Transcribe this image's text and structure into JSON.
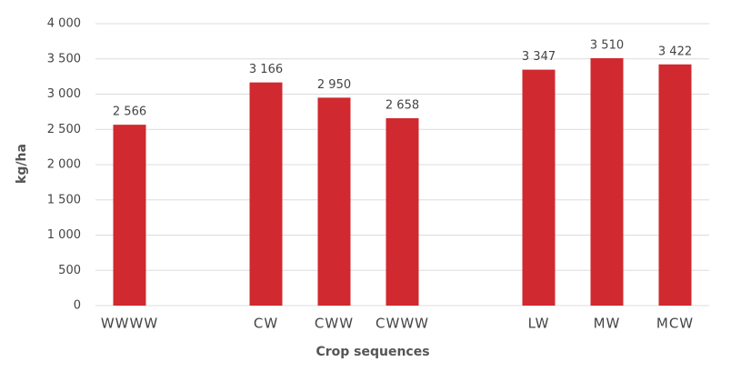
{
  "chart_data": {
    "type": "bar",
    "x_label": "Crop sequences",
    "y_label": "kg/ha",
    "categories": [
      "WWWW",
      null,
      "CW",
      "CWW",
      "CWWW",
      null,
      "LW",
      "MW",
      "MCW"
    ],
    "values": [
      2566,
      null,
      3166,
      2950,
      2658,
      null,
      3347,
      3510,
      3422
    ],
    "value_labels": [
      "2 566",
      null,
      "3 166",
      "2 950",
      "2 658",
      null,
      "3 347",
      "3 510",
      "3 422"
    ],
    "color": "#d0292f",
    "ylim": [
      0,
      4000
    ],
    "yticks": [
      0,
      500,
      {
        "value": 1000,
        "label": "1 000"
      },
      {
        "value": 1500,
        "label": "1 500"
      },
      {
        "value": 2000,
        "label": "2 000"
      },
      {
        "value": 2500,
        "label": "2 500"
      },
      {
        "value": 3000,
        "label": "3 000"
      },
      {
        "value": 3500,
        "label": "3 500"
      },
      {
        "value": 4000,
        "label": "4 000"
      }
    ],
    "grid": true
  }
}
